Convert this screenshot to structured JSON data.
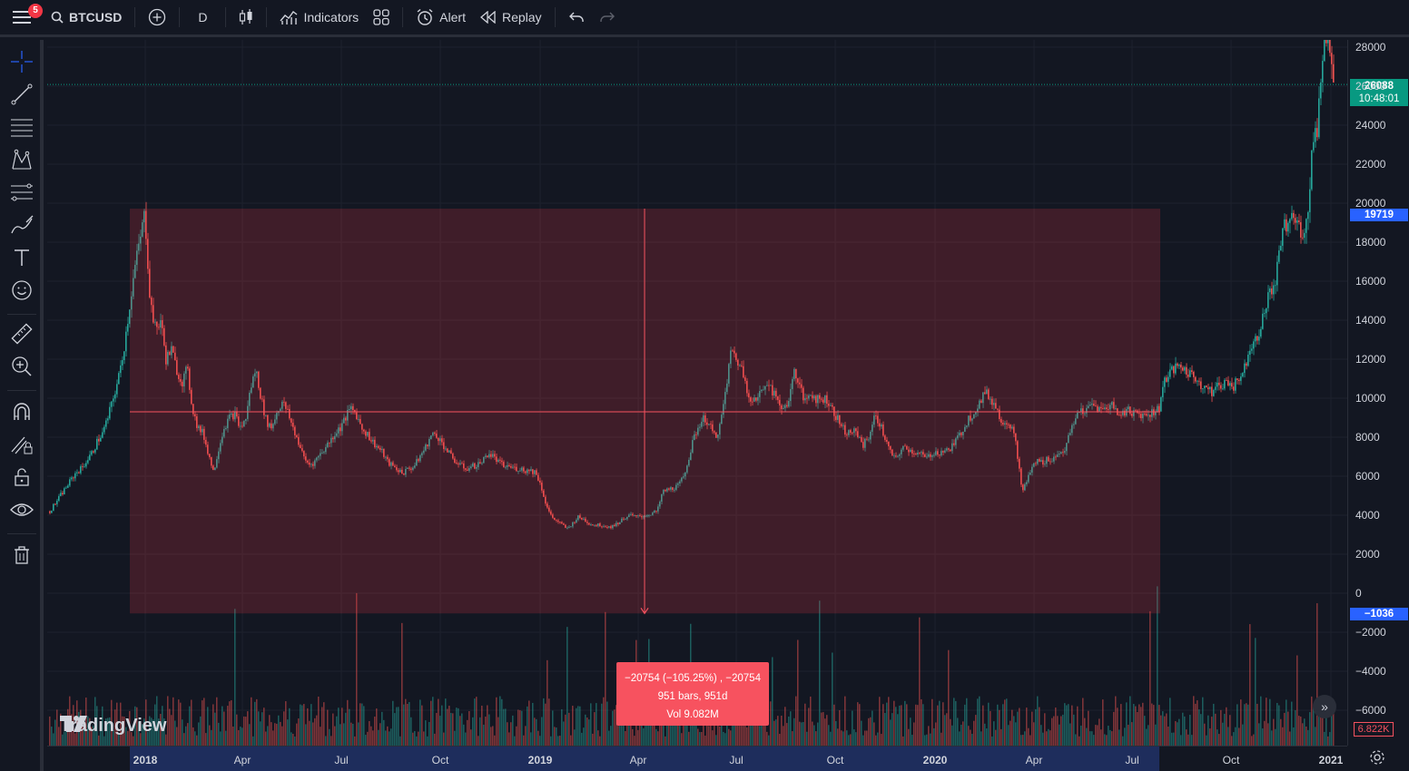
{
  "toolbar": {
    "notification_count": "5",
    "symbol": "BTCUSD",
    "interval": "D",
    "indicators_label": "Indicators",
    "alert_label": "Alert",
    "replay_label": "Replay"
  },
  "left_tools": [
    "crosshair-icon",
    "trend-line-icon",
    "fib-retracement-icon",
    "pattern-icon",
    "prediction-icon",
    "brush-icon",
    "text-icon",
    "emoji-icon",
    "ruler-icon",
    "zoom-in-icon",
    "magnet-icon",
    "lock-drawing-icon",
    "lock-icon",
    "eye-icon",
    "trash-icon"
  ],
  "price_axis": {
    "ticks": [
      "28000",
      "26000",
      "24000",
      "22000",
      "20000",
      "18000",
      "16000",
      "14000",
      "12000",
      "10000",
      "8000",
      "6000",
      "4000",
      "2000",
      "0",
      "−2000",
      "−4000",
      "−6000"
    ],
    "current_price": "26088",
    "countdown": "10:48:01",
    "measure_top": "19719",
    "measure_bottom": "−1036",
    "volume_label": "6.822K"
  },
  "time_axis": [
    {
      "label": "2018",
      "year": true
    },
    {
      "label": "Apr",
      "year": false
    },
    {
      "label": "Jul",
      "year": false
    },
    {
      "label": "Oct",
      "year": false
    },
    {
      "label": "2019",
      "year": true
    },
    {
      "label": "Apr",
      "year": false
    },
    {
      "label": "Jul",
      "year": false
    },
    {
      "label": "Oct",
      "year": false
    },
    {
      "label": "2020",
      "year": true
    },
    {
      "label": "Apr",
      "year": false
    },
    {
      "label": "Jul",
      "year": false
    },
    {
      "label": "Oct",
      "year": false
    },
    {
      "label": "2021",
      "year": true
    }
  ],
  "measure": {
    "line1": "−20754 (−105.25%) , −20754",
    "line2": "951 bars, 951d",
    "line3": "Vol 9.082M"
  },
  "brand": "TradingView",
  "colors": {
    "up": "#26a69a",
    "down": "#ef5350",
    "measure_fill": "rgba(242,54,69,0.2)",
    "measure_line": "#f7525f",
    "price_tag": "#089981",
    "measure_tag": "#2962ff"
  },
  "chart_data": {
    "type": "candlestick",
    "ylim": [
      -6500,
      28500
    ],
    "series_close": [
      4200,
      4600,
      5000,
      5400,
      5800,
      6200,
      6400,
      6800,
      7200,
      7800,
      8200,
      9000,
      10000,
      11000,
      12500,
      14500,
      16500,
      18000,
      19500,
      15000,
      13500,
      14000,
      12000,
      12500,
      11500,
      10800,
      11500,
      9500,
      8500,
      8200,
      7200,
      6200,
      7500,
      8500,
      9000,
      9200,
      8500,
      8800,
      10500,
      11500,
      10000,
      8800,
      8500,
      9300,
      9800,
      9300,
      8500,
      7800,
      7000,
      6600,
      6700,
      7100,
      7400,
      7800,
      8200,
      8500,
      9000,
      9500,
      9200,
      8500,
      8200,
      7800,
      7500,
      7200,
      6700,
      6500,
      6300,
      6200,
      6400,
      6500,
      7000,
      7400,
      8000,
      8200,
      7800,
      7400,
      7000,
      6700,
      6500,
      6400,
      6500,
      6600,
      6800,
      7200,
      7000,
      6700,
      6500,
      6500,
      6400,
      6400,
      6300,
      6300,
      6200,
      5500,
      4500,
      3900,
      3700,
      3500,
      3300,
      3600,
      3900,
      3800,
      3600,
      3500,
      3500,
      3450,
      3400,
      3500,
      3700,
      3900,
      4000,
      3900,
      3950,
      4000,
      4100,
      4200,
      5200,
      5300,
      5400,
      5500,
      6000,
      7000,
      8000,
      8700,
      9000,
      8500,
      8000,
      8700,
      10500,
      12500,
      12000,
      11500,
      10500,
      9800,
      10000,
      10500,
      11000,
      10200,
      9700,
      9500,
      10000,
      11500,
      10500,
      9800,
      10300,
      10000,
      9900,
      10000,
      9500,
      9000,
      8500,
      8200,
      8300,
      8100,
      7600,
      8000,
      9000,
      8800,
      8000,
      7300,
      6800,
      7300,
      7500,
      7300,
      7200,
      7100,
      6900,
      7200,
      7200,
      7300,
      7300,
      7600,
      8000,
      8500,
      9000,
      9300,
      9800,
      10300,
      10000,
      9600,
      8900,
      8800,
      8600,
      7500,
      5200,
      5800,
      6500,
      6800,
      6700,
      6900,
      6900,
      7200,
      7300,
      8100,
      8800,
      9500,
      9200,
      9700,
      9600,
      9400,
      9500,
      9700,
      9300,
      9200,
      9400,
      9300,
      9200,
      9150,
      9200,
      9300,
      9500,
      11000,
      11300,
      11500,
      11700,
      11400,
      11200,
      11000,
      10700,
      10500,
      10300,
      10600,
      10700,
      10900,
      10600,
      11000,
      11400,
      12500,
      13000,
      13500,
      14500,
      15500,
      16000,
      18000,
      19000,
      19300,
      19000,
      18500,
      19000,
      23000,
      24000,
      28000,
      29000,
      26088
    ]
  }
}
